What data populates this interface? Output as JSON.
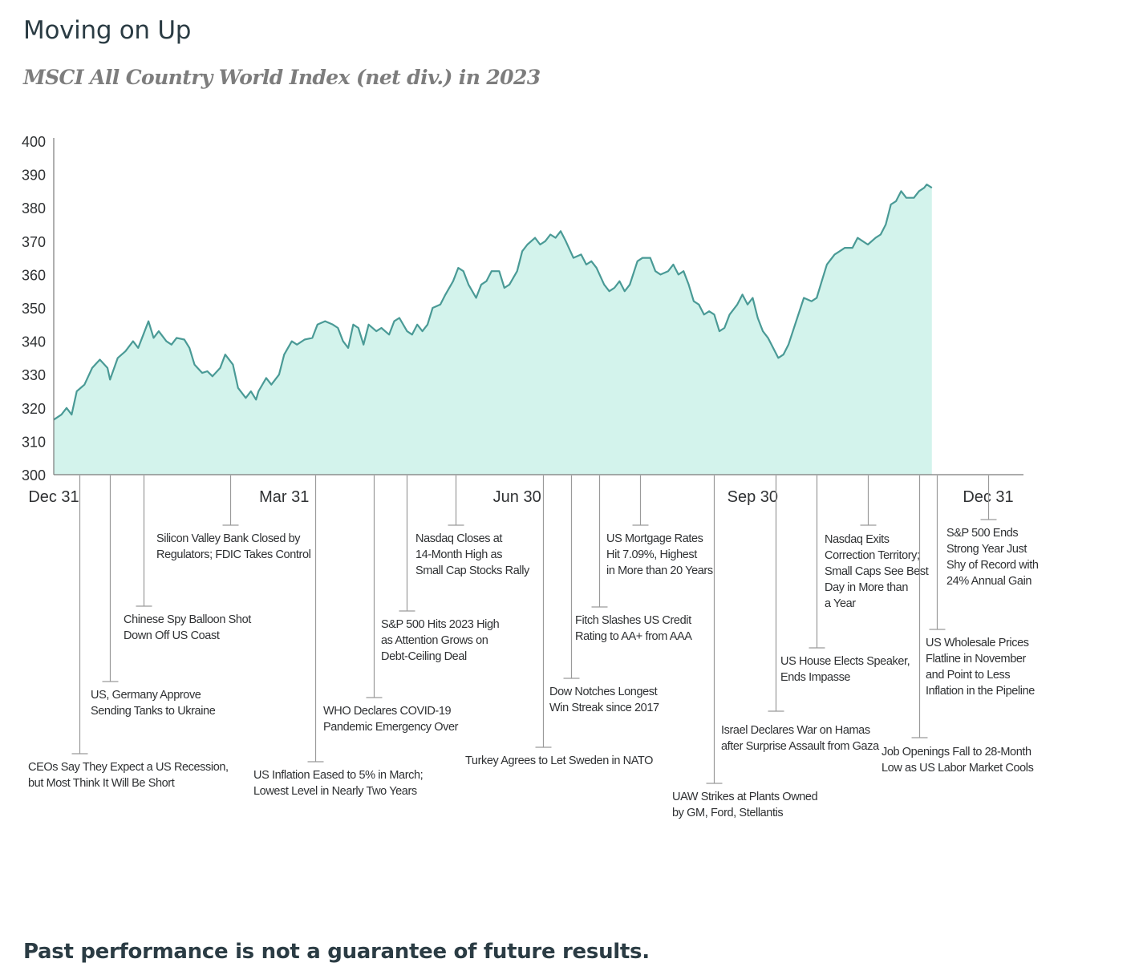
{
  "title": "Moving on Up",
  "subtitle": "MSCI All Country World Index (net div.) in 2023",
  "footnote": "Past performance is not a guarantee of future results.",
  "chart_data": {
    "type": "area",
    "title": "Moving on Up",
    "subtitle": "MSCI All Country World Index (net div.) in 2023",
    "xlabel": "",
    "ylabel": "",
    "ylim": [
      300,
      400
    ],
    "yticks": [
      300,
      310,
      320,
      330,
      340,
      350,
      360,
      370,
      380,
      390,
      400
    ],
    "xticks": [
      {
        "label": "Dec 31",
        "day": 0
      },
      {
        "label": "Mar 31",
        "day": 90
      },
      {
        "label": "Jun 30",
        "day": 181
      },
      {
        "label": "Sep 30",
        "day": 273
      },
      {
        "label": "Dec 31",
        "day": 365
      }
    ],
    "grid": false,
    "colors": {
      "line": "#4a9a96",
      "fill": "#d3f3ec",
      "axis": "#7a7a7a"
    },
    "series": [
      {
        "values": [
          [
            0,
            316.5
          ],
          [
            3,
            318
          ],
          [
            5,
            320
          ],
          [
            7,
            318
          ],
          [
            9,
            325
          ],
          [
            12,
            327
          ],
          [
            15,
            332
          ],
          [
            18,
            334.5
          ],
          [
            21,
            332
          ],
          [
            22,
            328.5
          ],
          [
            25,
            335
          ],
          [
            28,
            337
          ],
          [
            31,
            340
          ],
          [
            33,
            338
          ],
          [
            35,
            342
          ],
          [
            37,
            346
          ],
          [
            39,
            341
          ],
          [
            41,
            343
          ],
          [
            44,
            340
          ],
          [
            46,
            339
          ],
          [
            48,
            341
          ],
          [
            51,
            340.5
          ],
          [
            53,
            338
          ],
          [
            55,
            333
          ],
          [
            58,
            330.5
          ],
          [
            60,
            331
          ],
          [
            62,
            329.5
          ],
          [
            65,
            332
          ],
          [
            67,
            336
          ],
          [
            70,
            333
          ],
          [
            72,
            326
          ],
          [
            75,
            323
          ],
          [
            77,
            325
          ],
          [
            79,
            322.5
          ],
          [
            80,
            325
          ],
          [
            83,
            329
          ],
          [
            85,
            327
          ],
          [
            88,
            330
          ],
          [
            90,
            336
          ],
          [
            93,
            340
          ],
          [
            95,
            339
          ],
          [
            98,
            340.5
          ],
          [
            101,
            341
          ],
          [
            103,
            345
          ],
          [
            106,
            346
          ],
          [
            109,
            345
          ],
          [
            111,
            344
          ],
          [
            113,
            340
          ],
          [
            115,
            338
          ],
          [
            117,
            345
          ],
          [
            119,
            344
          ],
          [
            121,
            339
          ],
          [
            123,
            345
          ],
          [
            126,
            343
          ],
          [
            128,
            344
          ],
          [
            131,
            342
          ],
          [
            133,
            346
          ],
          [
            135,
            347
          ],
          [
            138,
            343
          ],
          [
            140,
            342
          ],
          [
            142,
            345
          ],
          [
            144,
            343
          ],
          [
            146,
            345
          ],
          [
            148,
            350
          ],
          [
            151,
            351
          ],
          [
            153,
            354
          ],
          [
            156,
            358
          ],
          [
            158,
            362
          ],
          [
            160,
            361
          ],
          [
            162,
            357
          ],
          [
            165,
            353
          ],
          [
            167,
            357
          ],
          [
            169,
            358
          ],
          [
            171,
            361
          ],
          [
            174,
            361
          ],
          [
            176,
            356
          ],
          [
            178,
            357
          ],
          [
            181,
            361
          ],
          [
            183,
            367
          ],
          [
            185,
            369
          ],
          [
            188,
            371
          ],
          [
            190,
            369
          ],
          [
            192,
            370
          ],
          [
            194,
            372
          ],
          [
            196,
            371
          ],
          [
            198,
            373
          ],
          [
            200,
            370
          ],
          [
            203,
            365
          ],
          [
            206,
            366
          ],
          [
            208,
            363
          ],
          [
            210,
            364
          ],
          [
            212,
            362
          ],
          [
            215,
            357
          ],
          [
            217,
            355
          ],
          [
            219,
            356
          ],
          [
            221,
            358
          ],
          [
            223,
            355
          ],
          [
            225,
            357
          ],
          [
            228,
            364
          ],
          [
            230,
            365
          ],
          [
            233,
            365
          ],
          [
            235,
            361
          ],
          [
            237,
            360
          ],
          [
            240,
            361
          ],
          [
            242,
            363
          ],
          [
            244,
            360
          ],
          [
            246,
            361
          ],
          [
            248,
            357
          ],
          [
            250,
            352
          ],
          [
            252,
            351
          ],
          [
            254,
            348
          ],
          [
            256,
            349
          ],
          [
            258,
            348
          ],
          [
            260,
            343
          ],
          [
            262,
            344
          ],
          [
            264,
            348
          ],
          [
            267,
            351
          ],
          [
            269,
            354
          ],
          [
            271,
            351
          ],
          [
            273,
            353
          ],
          [
            275,
            347
          ],
          [
            277,
            343
          ],
          [
            279,
            341
          ],
          [
            281,
            338
          ],
          [
            283,
            335
          ],
          [
            285,
            336
          ],
          [
            287,
            339
          ],
          [
            290,
            346
          ],
          [
            293,
            353
          ],
          [
            296,
            352
          ],
          [
            298,
            353
          ],
          [
            300,
            358
          ],
          [
            302,
            363
          ],
          [
            305,
            366
          ],
          [
            307,
            367
          ],
          [
            309,
            368
          ],
          [
            312,
            368
          ],
          [
            314,
            371
          ],
          [
            316,
            370
          ],
          [
            318,
            369
          ],
          [
            321,
            371
          ],
          [
            323,
            372
          ],
          [
            325,
            375
          ],
          [
            327,
            381
          ],
          [
            329,
            382
          ],
          [
            331,
            385
          ],
          [
            333,
            383
          ],
          [
            336,
            383
          ],
          [
            338,
            385
          ],
          [
            340,
            386
          ],
          [
            341,
            387
          ],
          [
            343,
            386
          ]
        ]
      }
    ],
    "annotations": [
      {
        "day": 10,
        "text": [
          "CEOs Say They Expect a US Recession,",
          "but Most Think It Will Be Short"
        ]
      },
      {
        "day": 22,
        "text": [
          "US, Germany Approve",
          "Sending Tanks to Ukraine"
        ]
      },
      {
        "day": 35,
        "text": [
          "Chinese Spy Balloon Shot",
          "Down Off US Coast"
        ]
      },
      {
        "day": 69,
        "text": [
          "Silicon Valley Bank Closed by",
          "Regulators; FDIC Takes Control"
        ]
      },
      {
        "day": 102,
        "text": [
          "US Inflation Eased to 5% in March;",
          "Lowest Level in Nearly Two Years"
        ]
      },
      {
        "day": 125,
        "text": [
          "WHO Declares COVID-19",
          "Pandemic Emergency Over"
        ]
      },
      {
        "day": 138,
        "text": [
          "S&P 500 Hits 2023 High",
          "as Attention Grows on",
          "Debt-Ceiling Deal"
        ]
      },
      {
        "day": 157,
        "text": [
          "Nasdaq Closes at",
          "14-Month High as",
          "Small Cap Stocks Rally"
        ]
      },
      {
        "day": 191,
        "text": [
          "Turkey Agrees to Let Sweden in NATO"
        ]
      },
      {
        "day": 202,
        "text": [
          "Dow Notches Longest",
          "Win Streak since 2017"
        ]
      },
      {
        "day": 213,
        "text": [
          "Fitch Slashes US Credit",
          "Rating to AA+ from AAA"
        ]
      },
      {
        "day": 229,
        "text": [
          "US Mortgage Rates",
          "Hit 7.09%, Highest",
          "in More than 20 Years"
        ]
      },
      {
        "day": 258,
        "text": [
          "UAW Strikes at Plants Owned",
          "by GM, Ford, Stellantis"
        ]
      },
      {
        "day": 282,
        "text": [
          "Israel Declares War on Hamas",
          "after Surprise Assault from Gaza"
        ]
      },
      {
        "day": 298,
        "text": [
          "US House Elects Speaker,",
          "Ends Impasse"
        ]
      },
      {
        "day": 318,
        "text": [
          "Nasdaq Exits",
          "Correction Territory;",
          "Small Caps See Best",
          "Day in More than",
          "a Year"
        ]
      },
      {
        "day": 338,
        "text": [
          "Job Openings Fall to 28-Month",
          "Low as US Labor Market Cools"
        ]
      },
      {
        "day": 345,
        "text": [
          "US Wholesale Prices",
          "Flatline in November",
          "and Point to Less",
          "Inflation in the Pipeline"
        ]
      },
      {
        "day": 365,
        "text": [
          "S&P 500 Ends",
          "Strong Year Just",
          "Shy of Record with",
          "24% Annual Gain"
        ]
      }
    ]
  }
}
